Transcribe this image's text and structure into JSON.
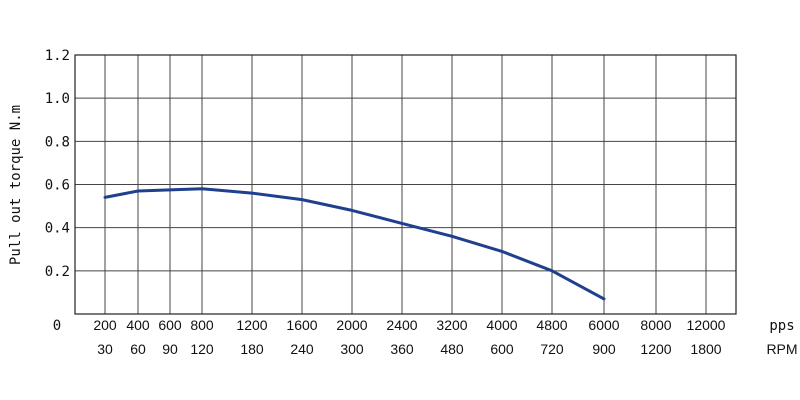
{
  "chart_data": {
    "type": "line",
    "title": "",
    "ylabel": "Pull out torque N.m",
    "ylim": [
      0,
      1.2
    ],
    "y_ticks": [
      "0.2",
      "0.4",
      "0.6",
      "0.8",
      "1.0",
      "1.2"
    ],
    "y_origin_label": "0",
    "x_rows": [
      {
        "unit": "pps",
        "ticks": [
          "200",
          "400",
          "600",
          "800",
          "1200",
          "1600",
          "2000",
          "2400",
          "3200",
          "4000",
          "4800",
          "6000",
          "8000",
          "12000"
        ]
      },
      {
        "unit": "RPM",
        "ticks": [
          "30",
          "60",
          "90",
          "120",
          "180",
          "240",
          "300",
          "360",
          "480",
          "600",
          "720",
          "900",
          "1200",
          "1800"
        ]
      }
    ],
    "x_scale": "nonuniform (tick positions as labelled)",
    "grid": true,
    "line_color": "#1f3f8f",
    "series": [
      {
        "x": [
          200,
          400,
          800,
          1200,
          1600,
          2000,
          2400,
          3200,
          4000,
          4800,
          6000
        ],
        "y": [
          0.54,
          0.57,
          0.58,
          0.56,
          0.53,
          0.48,
          0.42,
          0.36,
          0.29,
          0.2,
          0.07
        ]
      }
    ]
  }
}
